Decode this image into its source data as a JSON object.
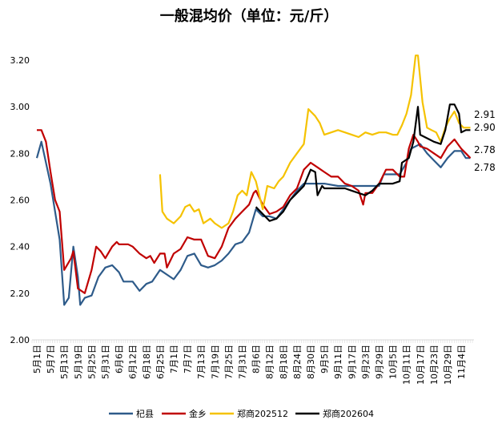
{
  "chart_data": {
    "type": "line",
    "title": "一般混均价（单位：元/斤）",
    "xlabel": "",
    "ylabel": "",
    "ylim": [
      2.0,
      3.2
    ],
    "yticks": [
      "2.00",
      "2.20",
      "2.40",
      "2.60",
      "2.80",
      "3.00",
      "3.20"
    ],
    "grid": false,
    "legend_position": "bottom",
    "x_tick_labels": [
      "5月1日",
      "5月7日",
      "5月13日",
      "5月19日",
      "5月25日",
      "5月31日",
      "6月6日",
      "6月12日",
      "6月18日",
      "6月25日",
      "7月1日",
      "7月7日",
      "7月13日",
      "7月19日",
      "7月25日",
      "7月31日",
      "8月6日",
      "8月12日",
      "8月18日",
      "8月24日",
      "8月30日",
      "9月5日",
      "9月11日",
      "9月17日",
      "9月23日",
      "9月29日",
      "10月5日",
      "10月11日",
      "10月17日",
      "10月23日",
      "10月29日",
      "11月4日"
    ],
    "series": [
      {
        "name": "杞县",
        "color": "#2e5b8a",
        "end_label": "2.78",
        "points": [
          [
            "5/1",
            2.78
          ],
          [
            "5/3",
            2.85
          ],
          [
            "5/7",
            2.67
          ],
          [
            "5/11",
            2.43
          ],
          [
            "5/13",
            2.15
          ],
          [
            "5/15",
            2.18
          ],
          [
            "5/17",
            2.4
          ],
          [
            "5/19",
            2.27
          ],
          [
            "5/20",
            2.15
          ],
          [
            "5/22",
            2.18
          ],
          [
            "5/25",
            2.19
          ],
          [
            "5/28",
            2.27
          ],
          [
            "5/31",
            2.31
          ],
          [
            "6/3",
            2.32
          ],
          [
            "6/6",
            2.29
          ],
          [
            "6/8",
            2.25
          ],
          [
            "6/12",
            2.25
          ],
          [
            "6/15",
            2.21
          ],
          [
            "6/18",
            2.24
          ],
          [
            "6/21",
            2.25
          ],
          [
            "6/25",
            2.3
          ],
          [
            "6/28",
            2.28
          ],
          [
            "7/1",
            2.26
          ],
          [
            "7/4",
            2.3
          ],
          [
            "7/7",
            2.36
          ],
          [
            "7/10",
            2.37
          ],
          [
            "7/13",
            2.32
          ],
          [
            "7/16",
            2.31
          ],
          [
            "7/19",
            2.32
          ],
          [
            "7/22",
            2.34
          ],
          [
            "7/25",
            2.37
          ],
          [
            "7/28",
            2.41
          ],
          [
            "7/31",
            2.42
          ],
          [
            "8/3",
            2.46
          ],
          [
            "8/6",
            2.56
          ],
          [
            "8/9",
            2.53
          ],
          [
            "8/12",
            2.53
          ],
          [
            "8/15",
            2.52
          ],
          [
            "8/18",
            2.56
          ],
          [
            "8/21",
            2.6
          ],
          [
            "8/24",
            2.64
          ],
          [
            "8/27",
            2.67
          ],
          [
            "8/30",
            2.67
          ],
          [
            "9/2",
            2.67
          ],
          [
            "9/5",
            2.67
          ],
          [
            "9/11",
            2.66
          ],
          [
            "9/17",
            2.66
          ],
          [
            "9/23",
            2.66
          ],
          [
            "9/29",
            2.66
          ],
          [
            "10/1",
            2.71
          ],
          [
            "10/5",
            2.71
          ],
          [
            "10/8",
            2.71
          ],
          [
            "10/11",
            2.76
          ],
          [
            "10/13",
            2.82
          ],
          [
            "10/17",
            2.84
          ],
          [
            "10/20",
            2.8
          ],
          [
            "10/23",
            2.77
          ],
          [
            "10/26",
            2.74
          ],
          [
            "10/29",
            2.78
          ],
          [
            "11/1",
            2.81
          ],
          [
            "11/4",
            2.81
          ],
          [
            "11/6",
            2.78
          ],
          [
            "11/8",
            2.78
          ]
        ]
      },
      {
        "name": "金乡",
        "color": "#c00000",
        "end_label": "2.78",
        "points": [
          [
            "5/1",
            2.9
          ],
          [
            "5/3",
            2.9
          ],
          [
            "5/5",
            2.85
          ],
          [
            "5/7",
            2.72
          ],
          [
            "5/9",
            2.6
          ],
          [
            "5/11",
            2.55
          ],
          [
            "5/13",
            2.3
          ],
          [
            "5/16",
            2.35
          ],
          [
            "5/17",
            2.38
          ],
          [
            "5/19",
            2.22
          ],
          [
            "5/22",
            2.2
          ],
          [
            "5/25",
            2.3
          ],
          [
            "5/27",
            2.4
          ],
          [
            "5/29",
            2.38
          ],
          [
            "5/31",
            2.35
          ],
          [
            "6/3",
            2.4
          ],
          [
            "6/5",
            2.42
          ],
          [
            "6/6",
            2.41
          ],
          [
            "6/10",
            2.41
          ],
          [
            "6/12",
            2.4
          ],
          [
            "6/15",
            2.37
          ],
          [
            "6/18",
            2.35
          ],
          [
            "6/20",
            2.36
          ],
          [
            "6/22",
            2.33
          ],
          [
            "6/25",
            2.37
          ],
          [
            "6/27",
            2.37
          ],
          [
            "6/28",
            2.31
          ],
          [
            "7/1",
            2.37
          ],
          [
            "7/4",
            2.39
          ],
          [
            "7/7",
            2.44
          ],
          [
            "7/10",
            2.43
          ],
          [
            "7/13",
            2.43
          ],
          [
            "7/16",
            2.36
          ],
          [
            "7/19",
            2.35
          ],
          [
            "7/22",
            2.4
          ],
          [
            "7/25",
            2.48
          ],
          [
            "7/28",
            2.52
          ],
          [
            "7/31",
            2.55
          ],
          [
            "8/3",
            2.58
          ],
          [
            "8/5",
            2.63
          ],
          [
            "8/6",
            2.64
          ],
          [
            "8/9",
            2.58
          ],
          [
            "8/12",
            2.54
          ],
          [
            "8/15",
            2.55
          ],
          [
            "8/18",
            2.57
          ],
          [
            "8/21",
            2.62
          ],
          [
            "8/24",
            2.65
          ],
          [
            "8/27",
            2.73
          ],
          [
            "8/30",
            2.76
          ],
          [
            "9/2",
            2.74
          ],
          [
            "9/5",
            2.72
          ],
          [
            "9/8",
            2.7
          ],
          [
            "9/11",
            2.7
          ],
          [
            "9/14",
            2.67
          ],
          [
            "9/17",
            2.66
          ],
          [
            "9/20",
            2.64
          ],
          [
            "9/22",
            2.58
          ],
          [
            "9/23",
            2.63
          ],
          [
            "9/26",
            2.63
          ],
          [
            "9/29",
            2.67
          ],
          [
            "10/2",
            2.73
          ],
          [
            "10/5",
            2.73
          ],
          [
            "10/8",
            2.7
          ],
          [
            "10/10",
            2.7
          ],
          [
            "10/12",
            2.82
          ],
          [
            "10/14",
            2.88
          ],
          [
            "10/16",
            2.85
          ],
          [
            "10/17",
            2.83
          ],
          [
            "10/20",
            2.82
          ],
          [
            "10/23",
            2.8
          ],
          [
            "10/26",
            2.78
          ],
          [
            "10/29",
            2.83
          ],
          [
            "11/1",
            2.86
          ],
          [
            "11/4",
            2.82
          ],
          [
            "11/6",
            2.8
          ],
          [
            "11/8",
            2.78
          ]
        ]
      },
      {
        "name": "郑商202512",
        "color": "#f5c200",
        "end_label": "2.91",
        "points": [
          [
            "6/25",
            2.71
          ],
          [
            "6/26",
            2.55
          ],
          [
            "6/28",
            2.52
          ],
          [
            "7/1",
            2.5
          ],
          [
            "7/4",
            2.53
          ],
          [
            "7/6",
            2.57
          ],
          [
            "7/8",
            2.58
          ],
          [
            "7/10",
            2.55
          ],
          [
            "7/12",
            2.56
          ],
          [
            "7/14",
            2.5
          ],
          [
            "7/17",
            2.52
          ],
          [
            "7/19",
            2.5
          ],
          [
            "7/22",
            2.48
          ],
          [
            "7/25",
            2.5
          ],
          [
            "7/27",
            2.55
          ],
          [
            "7/29",
            2.62
          ],
          [
            "7/31",
            2.64
          ],
          [
            "8/2",
            2.62
          ],
          [
            "8/4",
            2.72
          ],
          [
            "8/6",
            2.68
          ],
          [
            "8/9",
            2.56
          ],
          [
            "8/11",
            2.66
          ],
          [
            "8/14",
            2.65
          ],
          [
            "8/16",
            2.68
          ],
          [
            "8/18",
            2.7
          ],
          [
            "8/21",
            2.76
          ],
          [
            "8/24",
            2.8
          ],
          [
            "8/27",
            2.84
          ],
          [
            "8/29",
            2.99
          ],
          [
            "9/1",
            2.96
          ],
          [
            "9/3",
            2.93
          ],
          [
            "9/5",
            2.88
          ],
          [
            "9/8",
            2.89
          ],
          [
            "9/11",
            2.9
          ],
          [
            "9/14",
            2.89
          ],
          [
            "9/17",
            2.88
          ],
          [
            "9/20",
            2.87
          ],
          [
            "9/23",
            2.89
          ],
          [
            "9/26",
            2.88
          ],
          [
            "9/29",
            2.89
          ],
          [
            "10/2",
            2.89
          ],
          [
            "10/5",
            2.88
          ],
          [
            "10/7",
            2.88
          ],
          [
            "10/9",
            2.92
          ],
          [
            "10/11",
            2.97
          ],
          [
            "10/13",
            3.05
          ],
          [
            "10/15",
            3.22
          ],
          [
            "10/16",
            3.22
          ],
          [
            "10/18",
            3.02
          ],
          [
            "10/20",
            2.91
          ],
          [
            "10/22",
            2.9
          ],
          [
            "10/24",
            2.89
          ],
          [
            "10/26",
            2.85
          ],
          [
            "10/28",
            2.91
          ],
          [
            "10/30",
            2.95
          ],
          [
            "11/1",
            2.98
          ],
          [
            "11/3",
            2.93
          ],
          [
            "11/5",
            2.91
          ],
          [
            "11/8",
            2.91
          ]
        ]
      },
      {
        "name": "郑商202604",
        "color": "#000000",
        "end_label": "2.90",
        "points": [
          [
            "8/6",
            2.57
          ],
          [
            "8/9",
            2.54
          ],
          [
            "8/12",
            2.51
          ],
          [
            "8/15",
            2.52
          ],
          [
            "8/18",
            2.55
          ],
          [
            "8/21",
            2.6
          ],
          [
            "8/24",
            2.63
          ],
          [
            "8/27",
            2.66
          ],
          [
            "8/30",
            2.73
          ],
          [
            "9/1",
            2.72
          ],
          [
            "9/2",
            2.62
          ],
          [
            "9/4",
            2.66
          ],
          [
            "9/5",
            2.65
          ],
          [
            "9/11",
            2.65
          ],
          [
            "9/14",
            2.65
          ],
          [
            "9/17",
            2.64
          ],
          [
            "9/20",
            2.63
          ],
          [
            "9/23",
            2.62
          ],
          [
            "9/26",
            2.64
          ],
          [
            "9/29",
            2.67
          ],
          [
            "10/2",
            2.67
          ],
          [
            "10/5",
            2.67
          ],
          [
            "10/8",
            2.68
          ],
          [
            "10/9",
            2.76
          ],
          [
            "10/12",
            2.78
          ],
          [
            "10/14",
            2.85
          ],
          [
            "10/16",
            3.0
          ],
          [
            "10/17",
            2.88
          ],
          [
            "10/19",
            2.87
          ],
          [
            "10/21",
            2.86
          ],
          [
            "10/23",
            2.85
          ],
          [
            "10/26",
            2.84
          ],
          [
            "10/28",
            2.9
          ],
          [
            "10/30",
            3.01
          ],
          [
            "11/1",
            3.01
          ],
          [
            "11/3",
            2.97
          ],
          [
            "11/4",
            2.89
          ],
          [
            "11/6",
            2.9
          ],
          [
            "11/8",
            2.9
          ]
        ]
      }
    ]
  }
}
